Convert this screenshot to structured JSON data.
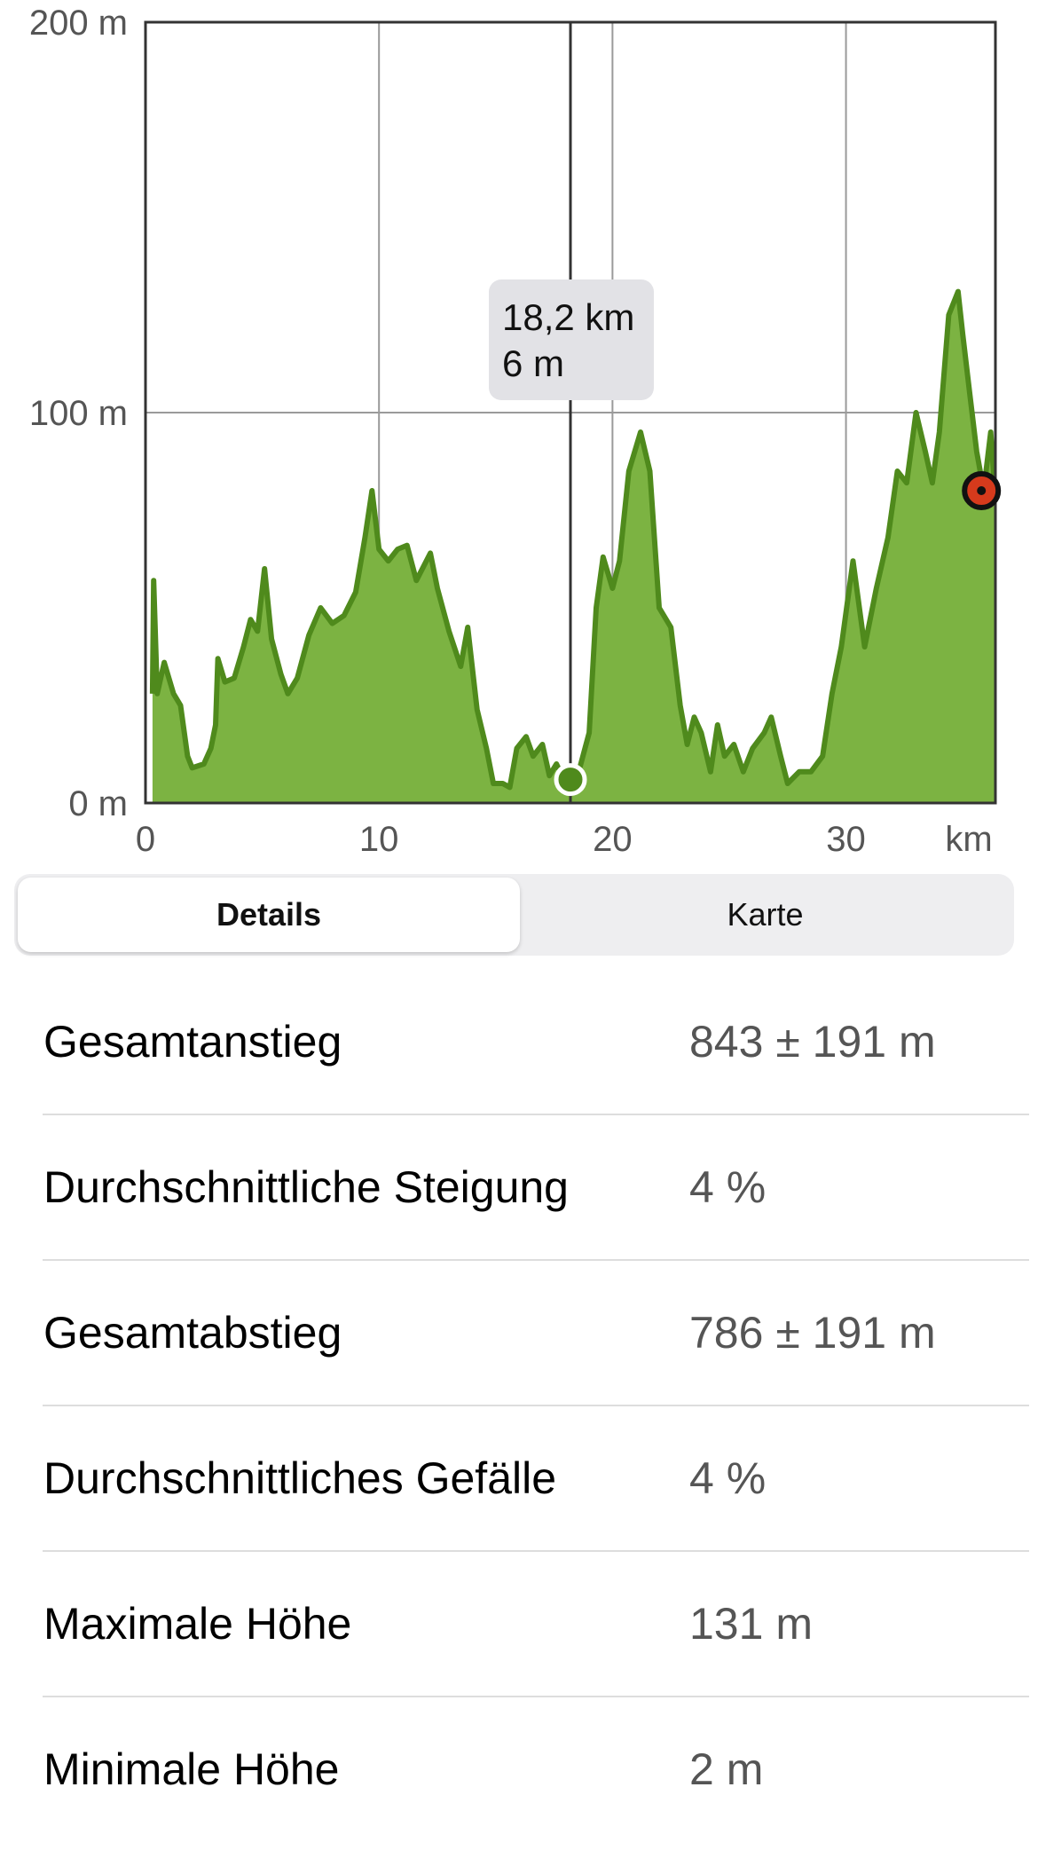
{
  "chart_data": {
    "type": "area",
    "x_label": "km",
    "x": [
      0.3,
      0.35,
      0.5,
      0.8,
      1.2,
      1.5,
      1.8,
      2.0,
      2.5,
      2.8,
      3.0,
      3.1,
      3.4,
      3.8,
      4.2,
      4.5,
      4.8,
      5.1,
      5.4,
      5.8,
      6.1,
      6.5,
      7.0,
      7.5,
      8.0,
      8.5,
      9.0,
      9.4,
      9.7,
      10.0,
      10.4,
      10.8,
      11.2,
      11.6,
      12.2,
      12.5,
      13.0,
      13.5,
      13.8,
      14.2,
      14.6,
      14.9,
      15.3,
      15.6,
      15.9,
      16.3,
      16.6,
      17.0,
      17.3,
      17.6,
      18.0,
      18.2,
      18.6,
      19.0,
      19.3,
      19.6,
      20.0,
      20.3,
      20.7,
      21.2,
      21.6,
      22.0,
      22.5,
      22.9,
      23.2,
      23.5,
      23.8,
      24.2,
      24.5,
      24.8,
      25.2,
      25.6,
      26.0,
      26.5,
      26.8,
      27.2,
      27.5,
      28.0,
      28.5,
      29.0,
      29.4,
      29.8,
      30.3,
      30.8,
      31.3,
      31.8,
      32.2,
      32.6,
      33.0,
      33.4,
      33.7,
      34.0,
      34.4,
      34.8,
      35.0,
      35.3,
      35.6,
      35.9,
      36.2,
      36.4
    ],
    "values": [
      28,
      57,
      28,
      36,
      28,
      25,
      12,
      9,
      10,
      14,
      20,
      37,
      31,
      32,
      40,
      47,
      44,
      60,
      42,
      33,
      28,
      32,
      43,
      50,
      46,
      48,
      54,
      68,
      80,
      65,
      62,
      65,
      66,
      57,
      64,
      55,
      44,
      35,
      45,
      24,
      14,
      5,
      5,
      4,
      14,
      17,
      12,
      15,
      7,
      10,
      5,
      6,
      9,
      18,
      50,
      63,
      55,
      62,
      85,
      95,
      85,
      50,
      45,
      25,
      15,
      22,
      18,
      8,
      20,
      12,
      15,
      8,
      14,
      18,
      22,
      12,
      5,
      8,
      8,
      12,
      28,
      40,
      62,
      40,
      55,
      68,
      85,
      82,
      100,
      90,
      82,
      95,
      125,
      131,
      120,
      105,
      90,
      80,
      95,
      78
    ],
    "fill": "#7cb342",
    "line_color": "#4f8a1c",
    "xlim": [
      0,
      36.4
    ],
    "xticks": [
      0,
      10,
      20,
      30
    ],
    "ylim": [
      0,
      200
    ],
    "yticks": [
      {
        "value": 0,
        "label": "0 m"
      },
      {
        "value": 100,
        "label": "100 m"
      },
      {
        "value": 200,
        "label": "200 m"
      }
    ],
    "grid": true,
    "cursor": {
      "x": 18.2,
      "value": 6,
      "labels": [
        "18,2 km",
        "6 m"
      ]
    },
    "end_marker": {
      "x": 35.8,
      "value": 80,
      "color": "#d63a1c"
    }
  },
  "tabs": [
    "Details",
    "Karte"
  ],
  "rows": [
    {
      "label": "Gesamtanstieg",
      "value": "843 ± 191 m"
    },
    {
      "label": "Durchschnittliche Steigung",
      "value": "4 %"
    },
    {
      "label": "Gesamtabstieg",
      "value": "786 ± 191 m"
    },
    {
      "label": "Durchschnittliches Gefälle",
      "value": "4 %"
    },
    {
      "label": "Maximale Höhe",
      "value": "131 m"
    },
    {
      "label": "Minimale Höhe",
      "value": "2 m"
    }
  ]
}
